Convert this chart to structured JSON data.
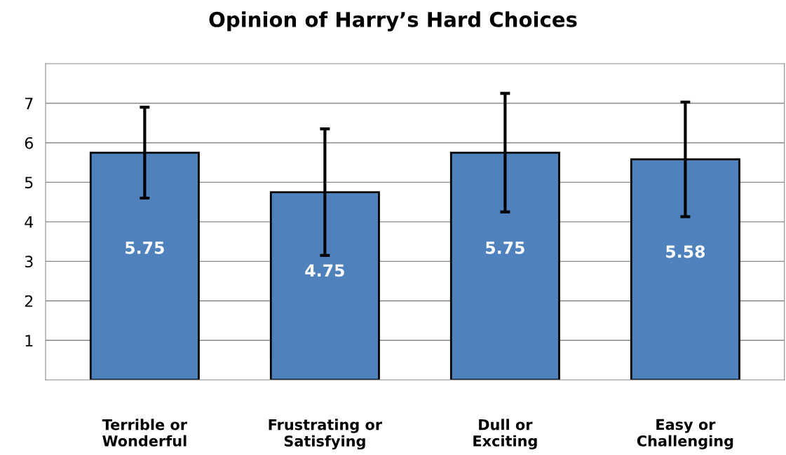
{
  "chart_data": {
    "type": "bar",
    "title": "Opinion of Harry’s Hard Choices",
    "categories": [
      "Terrible or\nWonderful",
      "Frustrating or\nSatisfying",
      "Dull or\nExciting",
      "Easy or\nChallenging"
    ],
    "values": [
      5.75,
      4.75,
      5.75,
      5.58
    ],
    "errors": [
      1.15,
      1.6,
      1.5,
      1.45
    ],
    "color": "#4f81bd",
    "data_labels": true,
    "ylim": [
      0,
      8
    ],
    "yticks": [
      1,
      2,
      3,
      4,
      5,
      6,
      7
    ],
    "grid": "y",
    "legend": false
  }
}
